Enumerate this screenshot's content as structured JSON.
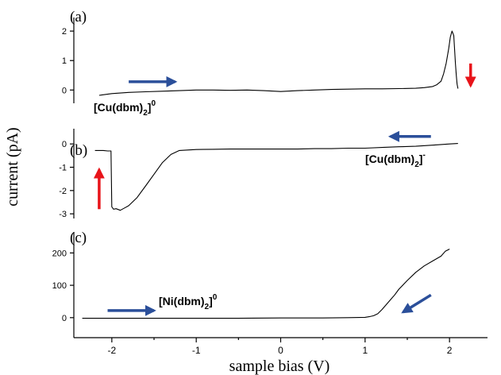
{
  "colors": {
    "trace": "#000000",
    "arrow_blue": "#2b4f9a",
    "arrow_red": "#e8141a",
    "axis": "#000000"
  },
  "figure": {
    "ylabel": "current (pA)",
    "xlabel": "sample bias (V)",
    "x_ticks": [
      "-2",
      "-1",
      "0",
      "1",
      "2"
    ]
  },
  "chart_data": [
    {
      "type": "line",
      "panel": "(a)",
      "xlim": [
        -2.45,
        2.45
      ],
      "ylim": [
        -0.45,
        2.3
      ],
      "y_ticks": [
        0,
        1,
        2
      ],
      "y_tick_labels": [
        "0",
        "1",
        "2"
      ],
      "species_label": {
        "base": "[Cu(dbm)",
        "sub": "2",
        "close": "]",
        "sup": "0"
      },
      "arrows": [
        {
          "color": "blue",
          "direction": "right",
          "from": [
            -1.8,
            0.28
          ],
          "to": [
            -1.25,
            0.28
          ]
        },
        {
          "color": "red",
          "direction": "down",
          "from": [
            2.25,
            0.9
          ],
          "to": [
            2.25,
            0.15
          ]
        }
      ],
      "series": [
        {
          "x": [
            -2.15,
            -2.0,
            -1.8,
            -1.6,
            -1.4,
            -1.2,
            -1.0,
            -0.8,
            -0.6,
            -0.4,
            -0.2,
            0.0,
            0.2,
            0.4,
            0.6,
            0.8,
            1.0,
            1.2,
            1.4,
            1.6,
            1.7,
            1.8,
            1.85,
            1.9,
            1.93,
            1.96,
            1.99,
            2.01,
            2.03,
            2.05,
            2.06,
            2.07,
            2.08,
            2.09,
            2.1
          ],
          "y": [
            -0.18,
            -0.12,
            -0.08,
            -0.06,
            -0.04,
            -0.02,
            0.0,
            0.0,
            -0.01,
            0.0,
            -0.02,
            -0.05,
            -0.02,
            0.0,
            0.02,
            0.03,
            0.04,
            0.04,
            0.05,
            0.06,
            0.08,
            0.12,
            0.18,
            0.3,
            0.55,
            0.9,
            1.4,
            1.8,
            2.0,
            1.85,
            1.4,
            0.9,
            0.5,
            0.2,
            0.05
          ]
        }
      ]
    },
    {
      "type": "line",
      "panel": "(b)",
      "xlim": [
        -2.45,
        2.45
      ],
      "ylim": [
        -3.2,
        0.45
      ],
      "y_ticks": [
        0,
        -1,
        -2,
        -3
      ],
      "y_tick_labels": [
        "0",
        "-1",
        "-2",
        "-3"
      ],
      "species_label": {
        "base": "[Cu(dbm)",
        "sub": "2",
        "close": "]",
        "sup": "-"
      },
      "arrows": [
        {
          "color": "blue",
          "direction": "left",
          "from": [
            1.78,
            0.32
          ],
          "to": [
            1.3,
            0.32
          ]
        },
        {
          "color": "red",
          "direction": "up",
          "from": [
            -2.15,
            -2.8
          ],
          "to": [
            -2.15,
            -1.1
          ]
        }
      ],
      "series": [
        {
          "x": [
            2.1,
            2.0,
            1.8,
            1.6,
            1.4,
            1.2,
            1.0,
            0.8,
            0.6,
            0.4,
            0.2,
            0.0,
            -0.2,
            -0.4,
            -0.6,
            -0.8,
            -1.0,
            -1.2,
            -1.3,
            -1.4,
            -1.5,
            -1.6,
            -1.7,
            -1.8,
            -1.85,
            -1.9,
            -1.95,
            -1.98,
            -2.0,
            -2.01,
            -2.05,
            -2.1,
            -2.2
          ],
          "y": [
            0.02,
            0.0,
            -0.05,
            -0.1,
            -0.12,
            -0.15,
            -0.18,
            -0.18,
            -0.2,
            -0.2,
            -0.22,
            -0.22,
            -0.22,
            -0.22,
            -0.22,
            -0.23,
            -0.24,
            -0.28,
            -0.45,
            -0.8,
            -1.3,
            -1.8,
            -2.3,
            -2.65,
            -2.75,
            -2.85,
            -2.78,
            -2.8,
            -2.7,
            -0.3,
            -0.3,
            -0.28,
            -0.28
          ]
        }
      ]
    },
    {
      "type": "line",
      "panel": "(c)",
      "xlim": [
        -2.45,
        2.45
      ],
      "ylim": [
        -25,
        250
      ],
      "y_ticks": [
        0,
        100,
        200
      ],
      "y_tick_labels": [
        "0",
        "100",
        "200"
      ],
      "species_label": {
        "base": "[Ni(dbm)",
        "sub": "2",
        "close": "]",
        "sup": "0"
      },
      "arrows": [
        {
          "color": "blue",
          "direction": "right",
          "from": [
            -2.05,
            22
          ],
          "to": [
            -1.5,
            22
          ]
        },
        {
          "color": "blue",
          "direction": "down-left",
          "from": [
            1.78,
            70
          ],
          "to": [
            1.45,
            17
          ]
        }
      ],
      "series": [
        {
          "x": [
            -2.35,
            -2.0,
            -1.5,
            -1.0,
            -0.5,
            0.0,
            0.5,
            0.8,
            1.0,
            1.05,
            1.1,
            1.15,
            1.2,
            1.25,
            1.3,
            1.35,
            1.4,
            1.5,
            1.6,
            1.7,
            1.8,
            1.9,
            1.95,
            2.0
          ],
          "y": [
            -2,
            -2,
            -2,
            -2,
            -2,
            -1,
            -1,
            0,
            1,
            3,
            6,
            12,
            25,
            40,
            55,
            70,
            88,
            115,
            140,
            160,
            175,
            190,
            205,
            212
          ]
        }
      ]
    }
  ]
}
